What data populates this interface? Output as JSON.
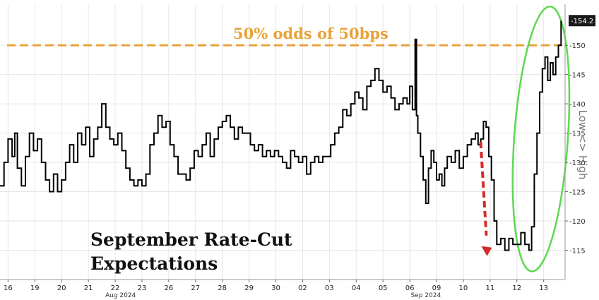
{
  "chart_data": {
    "type": "line",
    "title": "September Rate-Cut Expectations",
    "title_lines": [
      "September Rate-Cut",
      "Expectations"
    ],
    "ylabel": "Low <> High",
    "ylim": [
      110,
      157
    ],
    "yticks": [
      115,
      120,
      125,
      130,
      135,
      140,
      145,
      150
    ],
    "grid": true,
    "x_labels": [
      {
        "pos": 0.3,
        "label": "16"
      },
      {
        "pos": 1.3,
        "label": "19"
      },
      {
        "pos": 2.3,
        "label": "20"
      },
      {
        "pos": 3.3,
        "label": "21"
      },
      {
        "pos": 4.3,
        "label": "22"
      },
      {
        "pos": 5.3,
        "label": "23"
      },
      {
        "pos": 6.3,
        "label": "26"
      },
      {
        "pos": 7.3,
        "label": "27"
      },
      {
        "pos": 8.3,
        "label": "28"
      },
      {
        "pos": 9.3,
        "label": "29"
      },
      {
        "pos": 10.3,
        "label": "30"
      },
      {
        "pos": 11.3,
        "label": "02"
      },
      {
        "pos": 12.3,
        "label": "03"
      },
      {
        "pos": 13.3,
        "label": "04"
      },
      {
        "pos": 14.3,
        "label": "05"
      },
      {
        "pos": 15.3,
        "label": "06"
      },
      {
        "pos": 16.3,
        "label": "09"
      },
      {
        "pos": 17.3,
        "label": "10"
      },
      {
        "pos": 18.3,
        "label": "11"
      },
      {
        "pos": 19.3,
        "label": "12"
      },
      {
        "pos": 20.3,
        "label": "13"
      }
    ],
    "month_labels": [
      {
        "pos": 4.5,
        "label": "Aug 2024"
      },
      {
        "pos": 15.9,
        "label": "Sep 2024"
      }
    ],
    "reference_line": {
      "value": 150,
      "label": "50% odds of 50bps",
      "color": "#e8a33a"
    },
    "last_value": {
      "value": 154.2,
      "label": "-154.2"
    },
    "series": [
      {
        "color": "#000000",
        "points": [
          [
            0.0,
            126
          ],
          [
            0.15,
            130
          ],
          [
            0.3,
            134
          ],
          [
            0.45,
            131
          ],
          [
            0.55,
            135
          ],
          [
            0.65,
            129
          ],
          [
            0.8,
            126
          ],
          [
            0.95,
            131
          ],
          [
            1.1,
            135
          ],
          [
            1.25,
            132
          ],
          [
            1.4,
            134
          ],
          [
            1.55,
            130
          ],
          [
            1.7,
            127
          ],
          [
            1.85,
            125
          ],
          [
            2.0,
            128
          ],
          [
            2.15,
            125
          ],
          [
            2.3,
            127
          ],
          [
            2.45,
            130
          ],
          [
            2.6,
            133
          ],
          [
            2.75,
            130
          ],
          [
            2.9,
            135
          ],
          [
            3.05,
            133
          ],
          [
            3.2,
            136
          ],
          [
            3.35,
            131
          ],
          [
            3.5,
            134
          ],
          [
            3.65,
            136
          ],
          [
            3.8,
            140
          ],
          [
            3.95,
            136
          ],
          [
            4.1,
            134
          ],
          [
            4.25,
            133
          ],
          [
            4.4,
            135
          ],
          [
            4.55,
            132
          ],
          [
            4.7,
            129
          ],
          [
            4.85,
            127
          ],
          [
            5.0,
            126
          ],
          [
            5.15,
            127
          ],
          [
            5.3,
            126
          ],
          [
            5.45,
            128
          ],
          [
            5.6,
            133
          ],
          [
            5.75,
            135
          ],
          [
            5.9,
            138
          ],
          [
            6.05,
            136
          ],
          [
            6.2,
            137
          ],
          [
            6.35,
            133
          ],
          [
            6.5,
            131
          ],
          [
            6.65,
            128
          ],
          [
            6.8,
            128
          ],
          [
            6.95,
            127
          ],
          [
            7.1,
            129
          ],
          [
            7.25,
            132
          ],
          [
            7.4,
            131
          ],
          [
            7.55,
            133
          ],
          [
            7.7,
            135
          ],
          [
            7.85,
            131
          ],
          [
            8.0,
            134
          ],
          [
            8.15,
            136
          ],
          [
            8.3,
            137
          ],
          [
            8.45,
            138
          ],
          [
            8.6,
            136
          ],
          [
            8.75,
            134
          ],
          [
            8.9,
            136
          ],
          [
            9.05,
            135
          ],
          [
            9.2,
            135
          ],
          [
            9.35,
            133
          ],
          [
            9.5,
            132
          ],
          [
            9.65,
            133
          ],
          [
            9.8,
            131
          ],
          [
            9.95,
            132
          ],
          [
            10.1,
            131
          ],
          [
            10.25,
            132
          ],
          [
            10.4,
            131
          ],
          [
            10.55,
            130
          ],
          [
            10.7,
            129
          ],
          [
            10.85,
            132
          ],
          [
            11.0,
            131
          ],
          [
            11.15,
            130
          ],
          [
            11.3,
            131
          ],
          [
            11.45,
            128
          ],
          [
            11.6,
            130
          ],
          [
            11.75,
            131
          ],
          [
            11.9,
            130
          ],
          [
            12.05,
            131
          ],
          [
            12.2,
            131
          ],
          [
            12.35,
            133
          ],
          [
            12.5,
            135
          ],
          [
            12.65,
            136
          ],
          [
            12.8,
            139
          ],
          [
            12.95,
            138
          ],
          [
            13.1,
            140
          ],
          [
            13.25,
            142
          ],
          [
            13.4,
            141
          ],
          [
            13.55,
            139
          ],
          [
            13.7,
            143
          ],
          [
            13.85,
            144
          ],
          [
            14.0,
            146
          ],
          [
            14.15,
            144
          ],
          [
            14.3,
            142
          ],
          [
            14.45,
            143
          ],
          [
            14.6,
            141
          ],
          [
            14.75,
            139
          ],
          [
            14.9,
            140
          ],
          [
            15.05,
            141
          ],
          [
            15.2,
            140
          ],
          [
            15.3,
            143
          ],
          [
            15.4,
            139
          ],
          [
            15.5,
            151
          ],
          [
            15.55,
            138
          ],
          [
            15.6,
            135
          ],
          [
            15.7,
            131
          ],
          [
            15.8,
            127
          ],
          [
            15.9,
            123
          ],
          [
            16.0,
            129
          ],
          [
            16.1,
            132
          ],
          [
            16.2,
            130
          ],
          [
            16.3,
            127
          ],
          [
            16.4,
            128
          ],
          [
            16.5,
            126
          ],
          [
            16.6,
            129
          ],
          [
            16.7,
            131
          ],
          [
            16.85,
            130
          ],
          [
            17.0,
            132
          ],
          [
            17.15,
            129
          ],
          [
            17.3,
            131
          ],
          [
            17.45,
            133
          ],
          [
            17.6,
            134
          ],
          [
            17.75,
            135
          ],
          [
            17.85,
            133
          ],
          [
            17.95,
            134
          ],
          [
            18.05,
            137
          ],
          [
            18.15,
            136
          ],
          [
            18.25,
            131
          ],
          [
            18.35,
            127
          ],
          [
            18.45,
            120
          ],
          [
            18.55,
            116
          ],
          [
            18.7,
            117
          ],
          [
            18.85,
            115
          ],
          [
            19.0,
            117
          ],
          [
            19.15,
            116
          ],
          [
            19.3,
            116
          ],
          [
            19.45,
            118
          ],
          [
            19.6,
            116
          ],
          [
            19.75,
            115
          ],
          [
            19.85,
            119
          ],
          [
            19.95,
            128
          ],
          [
            20.05,
            135
          ],
          [
            20.15,
            142
          ],
          [
            20.25,
            146
          ],
          [
            20.35,
            148
          ],
          [
            20.45,
            144
          ],
          [
            20.55,
            147
          ],
          [
            20.65,
            145
          ],
          [
            20.75,
            148
          ],
          [
            20.85,
            150
          ],
          [
            20.95,
            154.2
          ]
        ]
      }
    ]
  }
}
